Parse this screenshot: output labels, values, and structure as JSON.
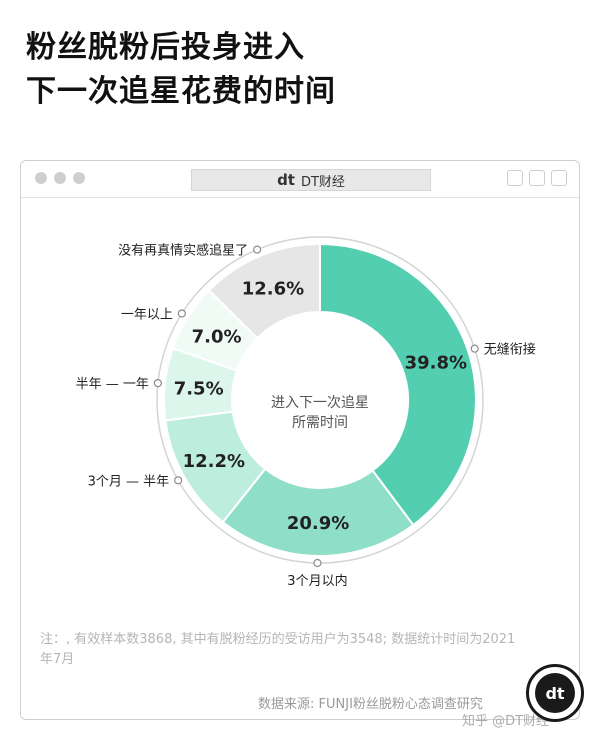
{
  "title_line1": "粉丝脱粉后投身进入",
  "title_line2": "下一次追星花费的时间",
  "window": {
    "tab_logo": "dt",
    "tab_label": "DT财经"
  },
  "chart_data": {
    "type": "pie",
    "center_label_line1": "进入下一次追星",
    "center_label_line2": "所需时间",
    "slices": [
      {
        "label": "无缝衔接",
        "value": 39.8,
        "display": "39.8%",
        "color": "#54ceb0"
      },
      {
        "label": "3个月以内",
        "value": 20.9,
        "display": "20.9%",
        "color": "#8fdfc8"
      },
      {
        "label": "3个月 — 半年",
        "value": 12.2,
        "display": "12.2%",
        "color": "#bdeedd"
      },
      {
        "label": "半年 — 一年",
        "value": 7.5,
        "display": "7.5%",
        "color": "#dcf6ec"
      },
      {
        "label": "一年以上",
        "value": 7.0,
        "display": "7.0%",
        "color": "#f1fbf6"
      },
      {
        "label": "没有再真情实感追星了",
        "value": 12.6,
        "display": "12.6%",
        "color": "#e6e6e6"
      }
    ]
  },
  "note": "注：, 有效样本数3868, 其中有脱粉经历的受访用户为3548; 数据统计时间为2021年7月",
  "source": "数据来源: FUNJI粉丝脱粉心态调查研究",
  "watermark": "知乎 @DT财经",
  "badge_text": "dt"
}
